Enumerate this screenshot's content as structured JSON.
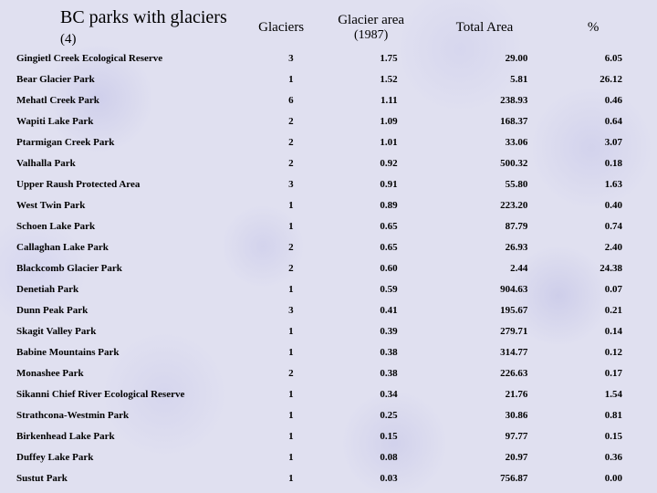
{
  "title_main": "BC parks with glaciers",
  "title_paren": "(4)",
  "headers": {
    "glaciers": "Glaciers",
    "glacier_area_l1": "Glacier area",
    "glacier_area_l2": "(1987)",
    "total_area": "Total Area",
    "percent": "%"
  },
  "columns": [
    "name",
    "glaciers",
    "glacier_area",
    "total_area",
    "percent"
  ],
  "col_align": [
    "left",
    "right",
    "right",
    "right",
    "right"
  ],
  "font_family": "Times New Roman",
  "title_fontsize": 20,
  "header_fontsize": 15,
  "body_fontsize": 11,
  "body_fontweight": "bold",
  "background_color": "#e0e0f0",
  "text_color": "#000000",
  "rows": [
    {
      "name": "Gingietl Creek Ecological Reserve",
      "glaciers": "3",
      "glacier_area": "1.75",
      "total_area": "29.00",
      "percent": "6.05"
    },
    {
      "name": "Bear Glacier Park",
      "glaciers": "1",
      "glacier_area": "1.52",
      "total_area": "5.81",
      "percent": "26.12"
    },
    {
      "name": "Mehatl Creek Park",
      "glaciers": "6",
      "glacier_area": "1.11",
      "total_area": "238.93",
      "percent": "0.46"
    },
    {
      "name": "Wapiti Lake Park",
      "glaciers": "2",
      "glacier_area": "1.09",
      "total_area": "168.37",
      "percent": "0.64"
    },
    {
      "name": "Ptarmigan Creek Park",
      "glaciers": "2",
      "glacier_area": "1.01",
      "total_area": "33.06",
      "percent": "3.07"
    },
    {
      "name": "Valhalla Park",
      "glaciers": "2",
      "glacier_area": "0.92",
      "total_area": "500.32",
      "percent": "0.18"
    },
    {
      "name": "Upper Raush Protected Area",
      "glaciers": "3",
      "glacier_area": "0.91",
      "total_area": "55.80",
      "percent": "1.63"
    },
    {
      "name": "West Twin Park",
      "glaciers": "1",
      "glacier_area": "0.89",
      "total_area": "223.20",
      "percent": "0.40"
    },
    {
      "name": "Schoen Lake Park",
      "glaciers": "1",
      "glacier_area": "0.65",
      "total_area": "87.79",
      "percent": "0.74"
    },
    {
      "name": "Callaghan Lake Park",
      "glaciers": "2",
      "glacier_area": "0.65",
      "total_area": "26.93",
      "percent": "2.40"
    },
    {
      "name": "Blackcomb Glacier Park",
      "glaciers": "2",
      "glacier_area": "0.60",
      "total_area": "2.44",
      "percent": "24.38"
    },
    {
      "name": "Denetiah Park",
      "glaciers": "1",
      "glacier_area": "0.59",
      "total_area": "904.63",
      "percent": "0.07"
    },
    {
      "name": "Dunn Peak Park",
      "glaciers": "3",
      "glacier_area": "0.41",
      "total_area": "195.67",
      "percent": "0.21"
    },
    {
      "name": "Skagit Valley Park",
      "glaciers": "1",
      "glacier_area": "0.39",
      "total_area": "279.71",
      "percent": "0.14"
    },
    {
      "name": "Babine Mountains Park",
      "glaciers": "1",
      "glacier_area": "0.38",
      "total_area": "314.77",
      "percent": "0.12"
    },
    {
      "name": "Monashee Park",
      "glaciers": "2",
      "glacier_area": "0.38",
      "total_area": "226.63",
      "percent": "0.17"
    },
    {
      "name": "Sikanni Chief River Ecological Reserve",
      "glaciers": "1",
      "glacier_area": "0.34",
      "total_area": "21.76",
      "percent": "1.54"
    },
    {
      "name": "Strathcona-Westmin Park",
      "glaciers": "1",
      "glacier_area": "0.25",
      "total_area": "30.86",
      "percent": "0.81"
    },
    {
      "name": "Birkenhead Lake Park",
      "glaciers": "1",
      "glacier_area": "0.15",
      "total_area": "97.77",
      "percent": "0.15"
    },
    {
      "name": "Duffey Lake Park",
      "glaciers": "1",
      "glacier_area": "0.08",
      "total_area": "20.97",
      "percent": "0.36"
    },
    {
      "name": "Sustut Park",
      "glaciers": "1",
      "glacier_area": "0.03",
      "total_area": "756.87",
      "percent": "0.00"
    }
  ]
}
